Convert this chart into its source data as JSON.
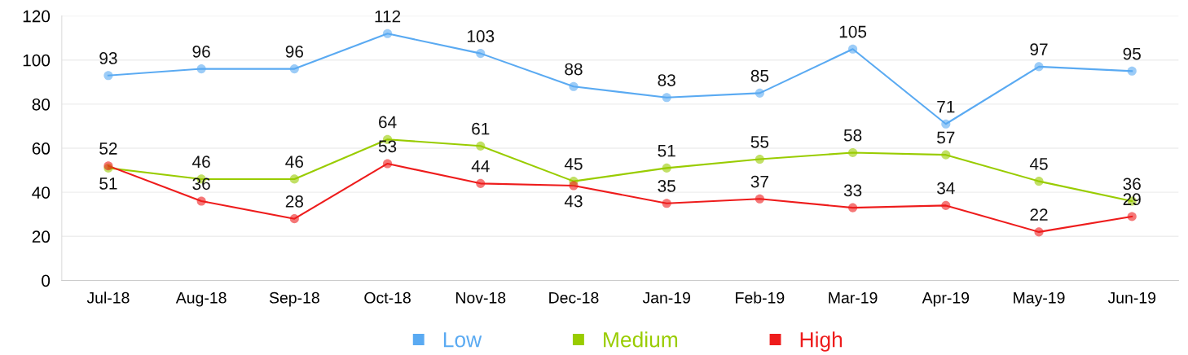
{
  "chart_data": {
    "type": "line",
    "categories": [
      "Jul-18",
      "Aug-18",
      "Sep-18",
      "Oct-18",
      "Nov-18",
      "Dec-18",
      "Jan-19",
      "Feb-19",
      "Mar-19",
      "Apr-19",
      "May-19",
      "Jun-19"
    ],
    "series": [
      {
        "name": "Low",
        "color": "#5aaaf2",
        "values": [
          93,
          96,
          96,
          112,
          103,
          88,
          83,
          85,
          105,
          71,
          97,
          95
        ]
      },
      {
        "name": "Medium",
        "color": "#99cc00",
        "values": [
          51,
          46,
          46,
          64,
          61,
          45,
          51,
          55,
          58,
          57,
          45,
          36
        ]
      },
      {
        "name": "High",
        "color": "#ee1c1c",
        "values": [
          52,
          36,
          28,
          53,
          44,
          43,
          35,
          37,
          33,
          34,
          22,
          29
        ]
      }
    ],
    "ylim": [
      0,
      120
    ],
    "yticks": [
      0,
      20,
      40,
      60,
      80,
      100,
      120
    ],
    "grid": "y",
    "legend": "bottom",
    "marker": "circle",
    "line_style": "solid",
    "data_labels": true
  }
}
